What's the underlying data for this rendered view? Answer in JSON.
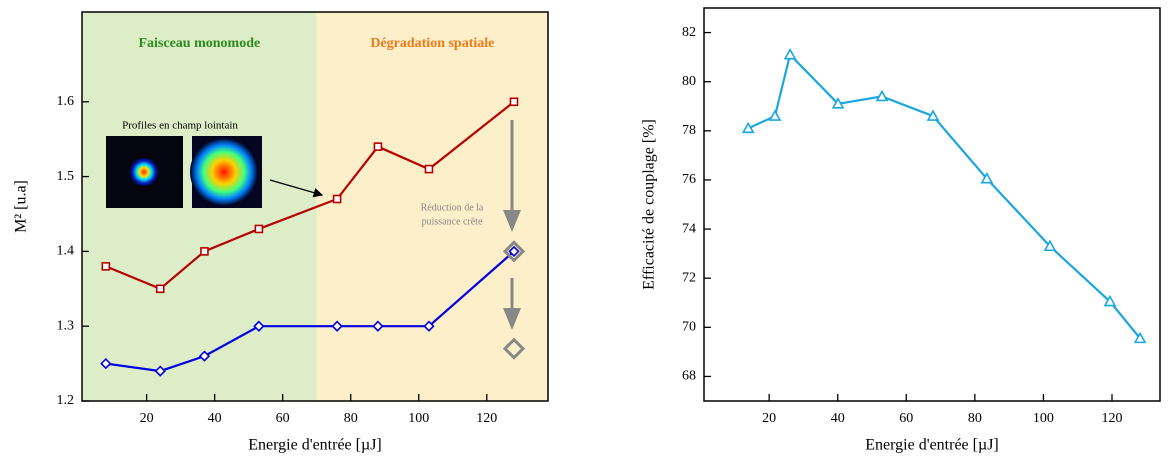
{
  "chart_data": [
    {
      "type": "line",
      "xlabel": "Energie d'entrée  [µJ]",
      "ylabel": "M²  [u.a]",
      "xlim": [
        1,
        138
      ],
      "xticks": [
        20,
        40,
        60,
        80,
        100,
        120
      ],
      "ylim": [
        1.2,
        1.72
      ],
      "yticks": [
        1.2,
        1.3,
        1.4,
        1.5,
        1.6
      ],
      "regions": [
        {
          "label": "Faisceau monomode",
          "span": [
            1,
            70
          ],
          "color": "#dcedc8",
          "label_color": "#2e8b1e"
        },
        {
          "label": "Dégradation spatiale",
          "span": [
            70,
            138
          ],
          "color": "#fdefc9",
          "label_color": "#f07a1a"
        }
      ],
      "annotations": [
        "Profiles en champ lointain",
        "Réduction de la",
        "puissance crête"
      ],
      "series": [
        {
          "color": "#b80000",
          "marker": "square",
          "x": [
            8,
            24,
            37,
            53,
            76,
            88,
            103,
            128
          ],
          "values": [
            1.38,
            1.35,
            1.4,
            1.43,
            1.47,
            1.54,
            1.51,
            1.6
          ]
        },
        {
          "color": "#0000e0",
          "marker": "diamond",
          "x": [
            8,
            24,
            37,
            53,
            76,
            88,
            103,
            128
          ],
          "values": [
            1.25,
            1.24,
            1.26,
            1.3,
            1.3,
            1.3,
            1.3,
            1.4
          ]
        },
        {
          "color": "#888888",
          "marker": "big-diamond",
          "line": false,
          "x": [
            128,
            128
          ],
          "values": [
            1.4,
            1.27
          ]
        }
      ]
    },
    {
      "type": "line",
      "xlabel": "Energie d'entrée  [µJ]",
      "ylabel": "Efficacité de couplage  [%]",
      "xlim": [
        1,
        134
      ],
      "xticks": [
        20,
        40,
        60,
        80,
        100,
        120
      ],
      "ylim": [
        67,
        83
      ],
      "yticks": [
        68,
        70,
        72,
        74,
        76,
        78,
        80,
        82
      ],
      "series": [
        {
          "color": "#1aa7e0",
          "marker": "triangle",
          "x": [
            13.9,
            21.7,
            26.1,
            40.1,
            52.9,
            67.8,
            83.5,
            101.9,
            119.4,
            128.2
          ],
          "values": [
            78.1,
            78.6,
            81.1,
            79.1,
            79.4,
            78.6,
            76.05,
            73.3,
            71.05,
            69.55
          ]
        }
      ]
    }
  ]
}
